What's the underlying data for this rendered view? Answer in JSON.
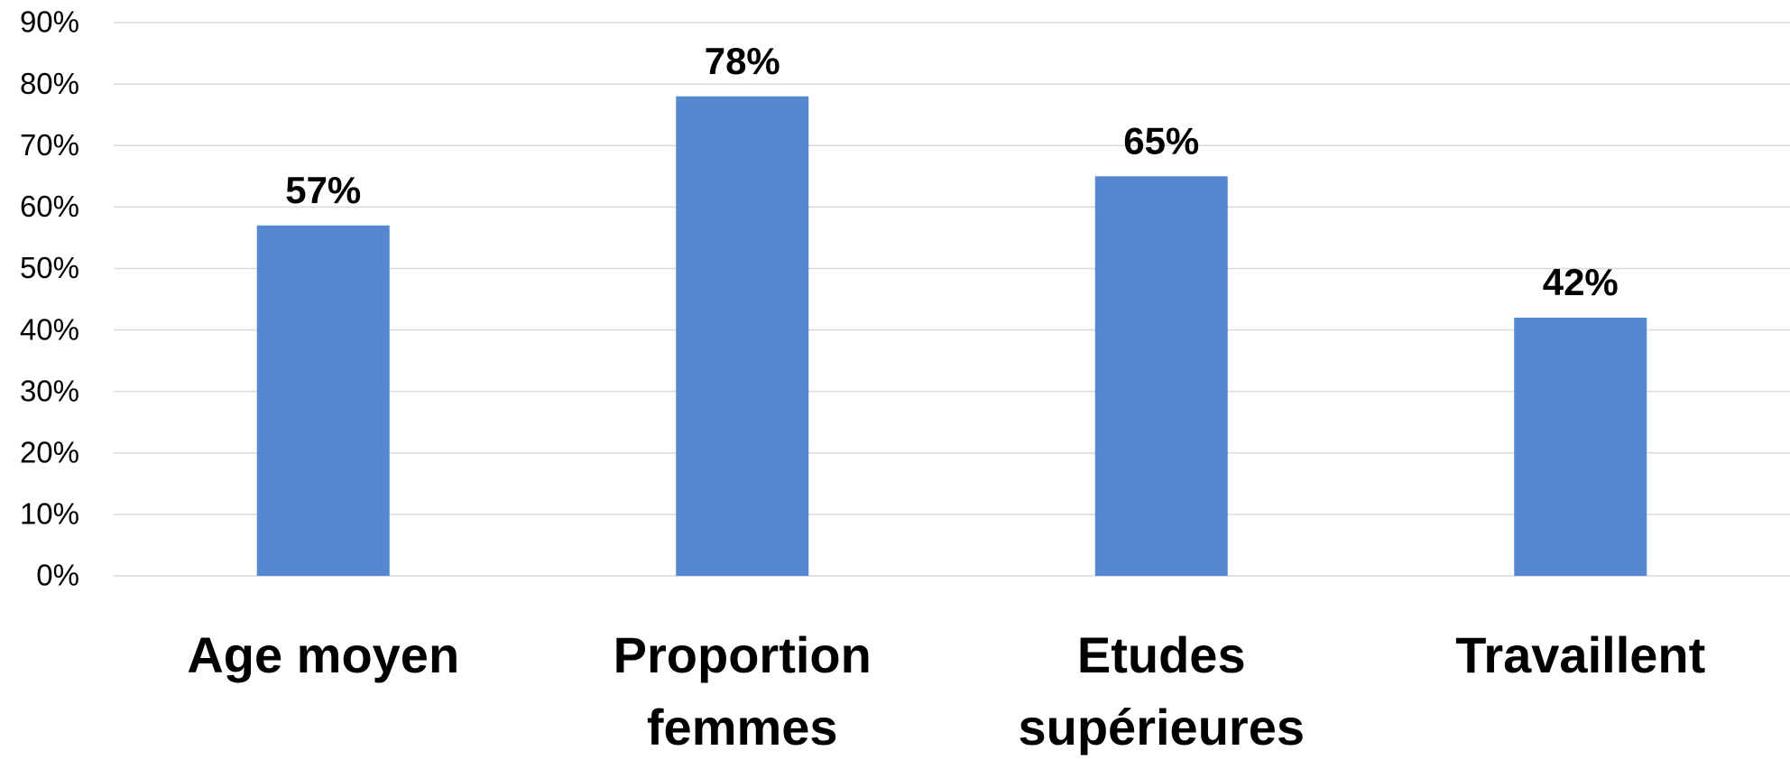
{
  "chart_data": {
    "type": "bar",
    "categories": [
      "Age moyen",
      "Proportion femmes",
      "Etudes supérieures",
      "Travaillent"
    ],
    "values": [
      57,
      78,
      65,
      42
    ],
    "value_labels": [
      "57%",
      "78%",
      "65%",
      "42%"
    ],
    "color": "#5588d0",
    "ylim": [
      0,
      90
    ],
    "yticks": [
      {
        "value": 0,
        "label": "0%"
      },
      {
        "value": 10,
        "label": "10%"
      },
      {
        "value": 20,
        "label": "20%"
      },
      {
        "value": 30,
        "label": "30%"
      },
      {
        "value": 40,
        "label": "40%"
      },
      {
        "value": 50,
        "label": "50%"
      },
      {
        "value": 60,
        "label": "60%"
      },
      {
        "value": 70,
        "label": "70%"
      },
      {
        "value": 80,
        "label": "80%"
      },
      {
        "value": 90,
        "label": "90%"
      }
    ],
    "grid": true
  }
}
